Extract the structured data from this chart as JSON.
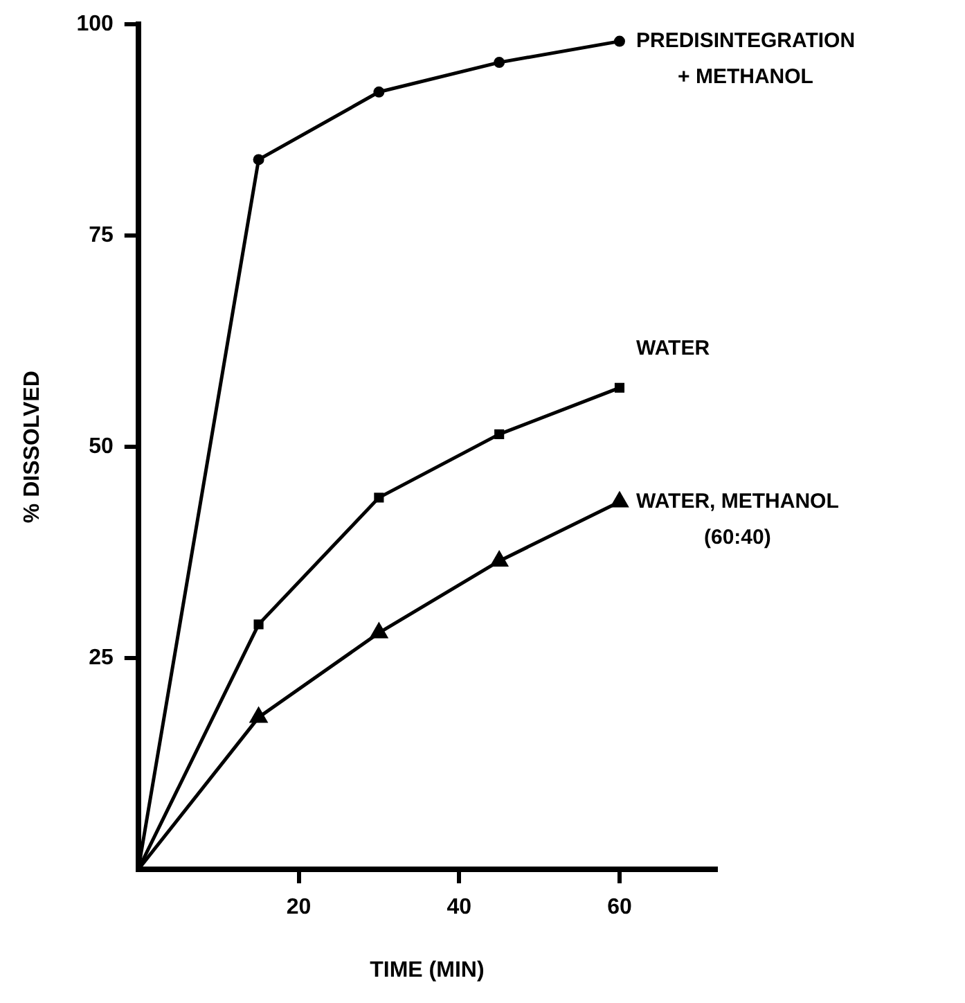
{
  "chart_data": {
    "type": "line",
    "xlabel": "TIME (MIN)",
    "ylabel": "% DISSOLVED",
    "x": [
      0,
      15,
      30,
      45,
      60
    ],
    "series": [
      {
        "name": "PREDISINTEGRATION + METHANOL",
        "color": "#000000",
        "marker": "circle",
        "values": [
          0,
          84,
          92,
          95.5,
          98
        ]
      },
      {
        "name": "WATER",
        "color": "#000000",
        "marker": "square",
        "values": [
          0,
          29,
          44,
          51.5,
          57
        ]
      },
      {
        "name": "WATER, METHANOL (60:40)",
        "color": "#000000",
        "marker": "triangle",
        "values": [
          0,
          18,
          28,
          36.5,
          43.5
        ]
      }
    ],
    "xlim": [
      0,
      72
    ],
    "xticks": [
      20,
      40,
      60
    ],
    "ylim": [
      0,
      100
    ],
    "yticks": [
      25,
      50,
      75,
      100
    ],
    "grid": false,
    "legend": false,
    "line_style": "solid"
  }
}
